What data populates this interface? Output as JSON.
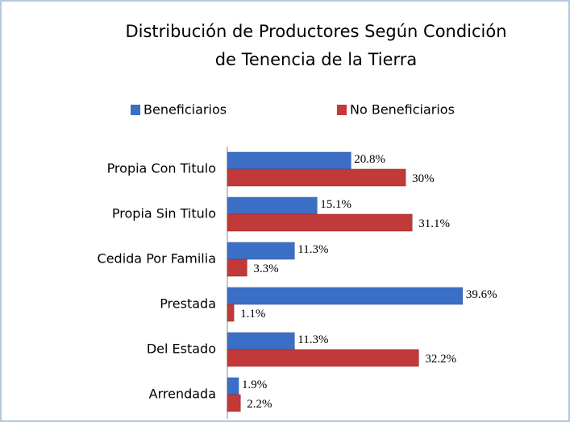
{
  "chart_data": {
    "type": "bar",
    "orientation": "horizontal",
    "title": [
      "Distribución de Productores Según Condición",
      "de Tenencia de la Tierra"
    ],
    "categories": [
      "Propia Con Titulo",
      "Propia Sin Titulo",
      "Cedida Por Familia",
      "Prestada",
      "Del Estado",
      "Arrendada"
    ],
    "series": [
      {
        "name": "Beneficiarios",
        "color": "#3b6fc6",
        "values": [
          20.8,
          15.1,
          11.3,
          39.6,
          11.3,
          1.9
        ],
        "value_labels": [
          "20.8%",
          "15.1%",
          "11.3%",
          "39.6%",
          "11.3%",
          "1.9%"
        ]
      },
      {
        "name": "No Beneficiarios",
        "color": "#c2393a",
        "values": [
          30,
          31.1,
          3.3,
          1.1,
          32.2,
          2.2
        ],
        "value_labels": [
          "30%",
          "31.1%",
          "3.3%",
          "1.1%",
          "32.2%",
          "2.2%"
        ]
      }
    ],
    "legend": "top"
  }
}
